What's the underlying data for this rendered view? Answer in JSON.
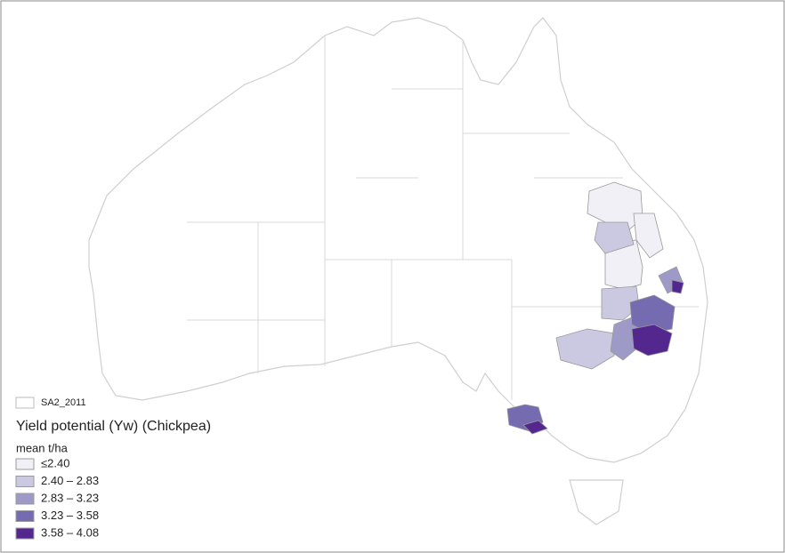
{
  "legend": {
    "layer": "SA2_2011",
    "title": "Yield potential (Yw) (Chickpea)",
    "subtitle": "mean t/ha",
    "classes": [
      {
        "label": "≤2.40",
        "color": "#f2f0f7"
      },
      {
        "label": "2.40 – 2.83",
        "color": "#cbc9e2"
      },
      {
        "label": "2.83 – 3.23",
        "color": "#9e9ac8"
      },
      {
        "label": "3.23 – 3.58",
        "color": "#756bb1"
      },
      {
        "label": "3.58 – 4.08",
        "color": "#54278f"
      }
    ]
  }
}
